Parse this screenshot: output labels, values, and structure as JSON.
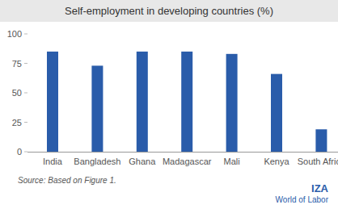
{
  "chart_data": {
    "type": "bar",
    "title": "Self-employment in developing countries (%)",
    "categories": [
      "India",
      "Bangladesh",
      "Ghana",
      "Madagascar",
      "Mali",
      "Kenya",
      "South Africa"
    ],
    "values": [
      85,
      73,
      85,
      85,
      83,
      66,
      19
    ],
    "color": "#2a5caa",
    "ylim": [
      0,
      100
    ],
    "yticks": [
      0,
      25,
      50,
      75,
      100
    ],
    "grid": false,
    "annotations": [
      "Source: Based on Figure 1.",
      "IZA",
      "World of Labor"
    ]
  }
}
